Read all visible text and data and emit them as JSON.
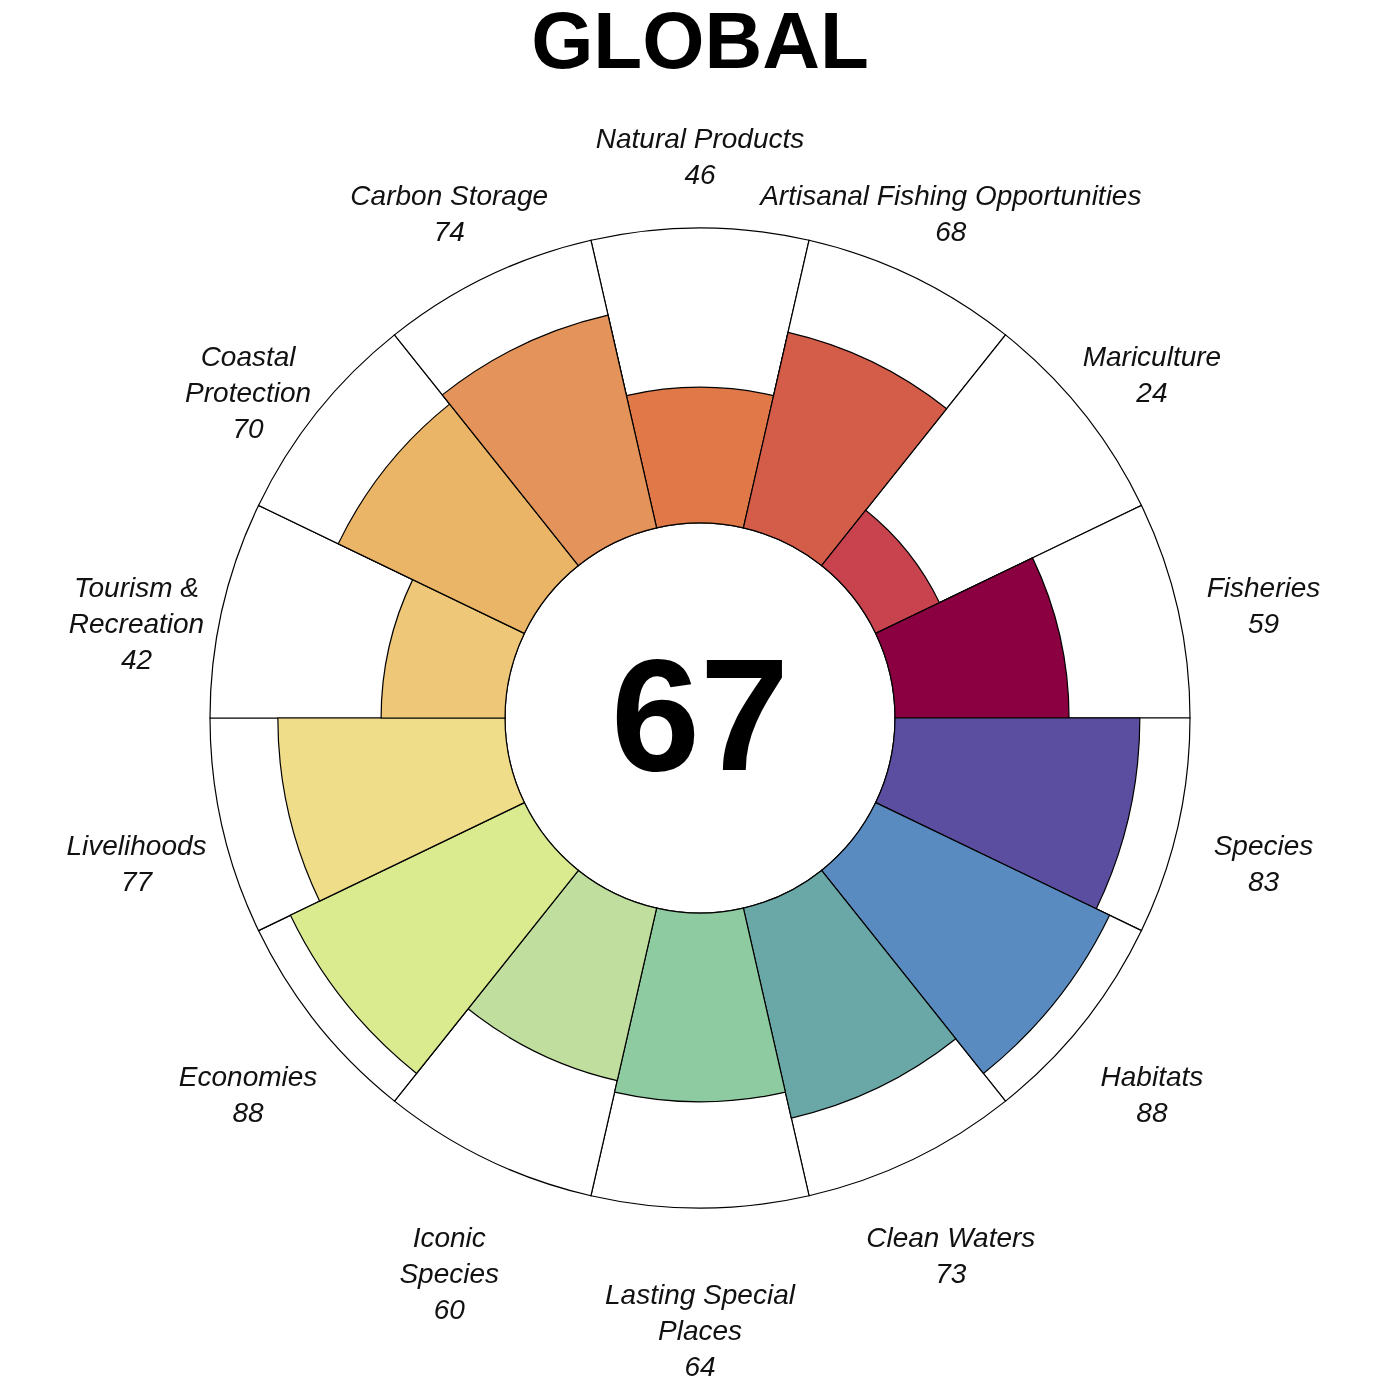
{
  "chart_data": {
    "type": "other",
    "title": "GLOBAL",
    "categories": [
      "Natural Products",
      "Artisanal Fishing Opportunities",
      "Mariculture",
      "Fisheries",
      "Species",
      "Habitats",
      "Clean Waters",
      "Lasting Special\nPlaces",
      "Iconic\nSpecies",
      "Economies",
      "Livelihoods",
      "Tourism &\nRecreation",
      "Coastal\nProtection",
      "Carbon Storage"
    ],
    "values": [
      46,
      68,
      24,
      59,
      83,
      88,
      73,
      64,
      60,
      88,
      77,
      42,
      70,
      74
    ],
    "colors": [
      "#e07848",
      "#d45d4a",
      "#c9434f",
      "#8b0040",
      "#5b4ea0",
      "#5a8bc0",
      "#6aa8a8",
      "#8fcba0",
      "#c0df9f",
      "#d9ea8f",
      "#f0dd8a",
      "#eec878",
      "#ebb567",
      "#e4945a"
    ],
    "data_labels": true,
    "annotations": [
      "67"
    ]
  }
}
